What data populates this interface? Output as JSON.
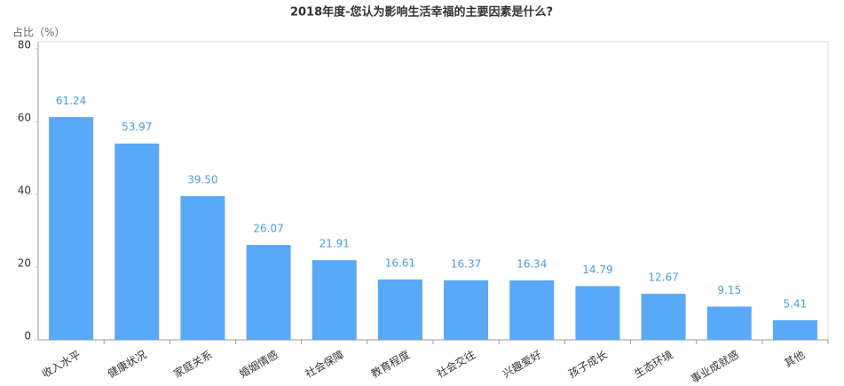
{
  "chart_data": {
    "type": "bar",
    "title": "2018年度-您认为影响生活幸福的主要因素是什么?",
    "y_axis_label": "占比（%）",
    "categories": [
      "收入水平",
      "健康状况",
      "家庭关系",
      "婚姻情感",
      "社会保障",
      "教育程度",
      "社会交往",
      "兴趣爱好",
      "孩子成长",
      "生态环境",
      "事业成就感",
      "其他"
    ],
    "values": [
      61.24,
      53.97,
      39.5,
      26.07,
      21.91,
      16.61,
      16.37,
      16.34,
      14.79,
      12.67,
      9.15,
      5.41
    ],
    "value_labels": [
      "61.24",
      "53.97",
      "39.50",
      "26.07",
      "21.91",
      "16.61",
      "16.37",
      "16.34",
      "14.79",
      "12.67",
      "9.15",
      "5.41"
    ],
    "color": "#5aa8f8",
    "ylim": [
      0,
      80
    ],
    "yticks": [
      0,
      20,
      40,
      60,
      80
    ],
    "grid": false
  }
}
